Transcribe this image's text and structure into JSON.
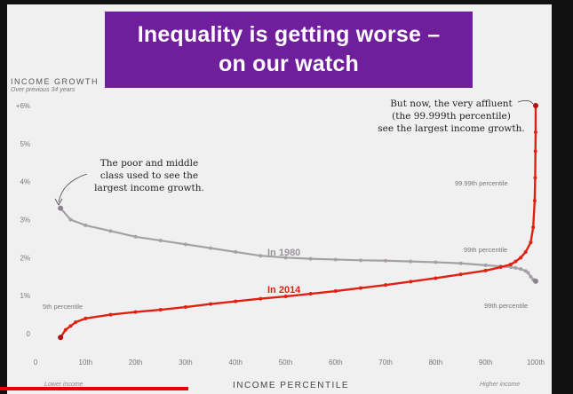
{
  "header": {
    "title_line1": "Inequality is getting worse –",
    "title_line2": "on our watch"
  },
  "chart_data": {
    "type": "line",
    "title": "Inequality is getting worse – on our watch",
    "ylabel": "INCOME GROWTH",
    "ylabel_sub": "Over previous 34 years",
    "xlabel": "INCOME PERCENTILE",
    "x_low_label": "Lower income",
    "x_high_label": "Higher income",
    "xlim": [
      0,
      100
    ],
    "ylim": [
      -0.3,
      6.2
    ],
    "x_ticks": [
      {
        "value": 0,
        "label": "0"
      },
      {
        "value": 10,
        "label": "10th"
      },
      {
        "value": 20,
        "label": "20th"
      },
      {
        "value": 30,
        "label": "30th"
      },
      {
        "value": 40,
        "label": "40th"
      },
      {
        "value": 50,
        "label": "50th"
      },
      {
        "value": 60,
        "label": "60th"
      },
      {
        "value": 70,
        "label": "70th"
      },
      {
        "value": 80,
        "label": "80th"
      },
      {
        "value": 90,
        "label": "90th"
      },
      {
        "value": 100,
        "label": "100th"
      }
    ],
    "y_ticks": [
      {
        "value": 0,
        "label": "0"
      },
      {
        "value": 1,
        "label": "1%"
      },
      {
        "value": 2,
        "label": "2%"
      },
      {
        "value": 3,
        "label": "3%"
      },
      {
        "value": 4,
        "label": "4%"
      },
      {
        "value": 5,
        "label": "5%"
      },
      {
        "value": 6,
        "label": "+6%"
      }
    ],
    "grid": false,
    "series": [
      {
        "name": "In 1980",
        "color": "#a5a0a5",
        "x": [
          5,
          7,
          10,
          15,
          20,
          25,
          30,
          35,
          40,
          45,
          50,
          55,
          60,
          65,
          70,
          75,
          80,
          85,
          90,
          93,
          95,
          96,
          97,
          98,
          98.5,
          99,
          99.5,
          99.9,
          99.99,
          100
        ],
        "y": [
          3.3,
          3.0,
          2.85,
          2.7,
          2.55,
          2.45,
          2.35,
          2.25,
          2.15,
          2.05,
          2.0,
          1.97,
          1.95,
          1.93,
          1.92,
          1.9,
          1.88,
          1.85,
          1.8,
          1.77,
          1.75,
          1.73,
          1.7,
          1.65,
          1.6,
          1.5,
          1.42,
          1.4,
          1.38,
          1.38
        ]
      },
      {
        "name": "In 2014",
        "color": "#e02010",
        "x": [
          5,
          6,
          7,
          8,
          10,
          15,
          20,
          25,
          30,
          35,
          40,
          45,
          50,
          55,
          60,
          65,
          70,
          75,
          80,
          85,
          90,
          93,
          95,
          96,
          97,
          98,
          99,
          99.5,
          99.8,
          99.9,
          99.95,
          99.99,
          100
        ],
        "y": [
          -0.1,
          0.1,
          0.2,
          0.3,
          0.4,
          0.5,
          0.57,
          0.63,
          0.7,
          0.78,
          0.85,
          0.92,
          0.98,
          1.05,
          1.12,
          1.2,
          1.28,
          1.37,
          1.46,
          1.56,
          1.66,
          1.75,
          1.82,
          1.9,
          2.0,
          2.15,
          2.4,
          2.8,
          3.5,
          4.1,
          4.8,
          5.3,
          6.0
        ]
      }
    ],
    "annotations": {
      "poor_line1": "The poor and middle",
      "poor_line2": "class used to see the",
      "poor_line3": "largest income growth.",
      "rich_line1": "But now, the very affluent",
      "rich_line2": "(the 99.999th percentile)",
      "rich_line3": "see the largest income growth."
    },
    "percentile_labels": {
      "p5": "5th percentile",
      "p9999": "99.99th percentile",
      "p99_1980": "99th percentile",
      "p99_2014": "99th percentile"
    }
  }
}
